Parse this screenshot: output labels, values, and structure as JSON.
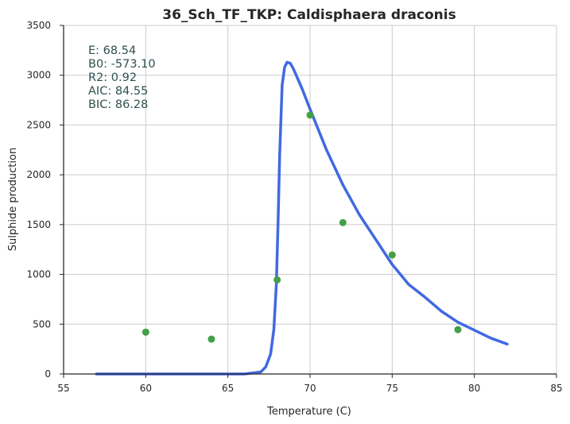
{
  "chart_data": {
    "type": "line",
    "title": "36_Sch_TF_TKP: Caldisphaera draconis",
    "xlabel": "Temperature (C)",
    "ylabel": "Sulphide production",
    "xlim": [
      55,
      85
    ],
    "ylim": [
      0,
      3500
    ],
    "xticks": [
      55,
      60,
      65,
      70,
      75,
      80,
      85
    ],
    "yticks": [
      0,
      500,
      1000,
      1500,
      2000,
      2500,
      3000,
      3500
    ],
    "grid": true,
    "colors": {
      "fit": "#4169e1",
      "points": "#43a047"
    },
    "stats": [
      {
        "label": "E:",
        "value": "68.54"
      },
      {
        "label": "B0:",
        "value": "-573.10"
      },
      {
        "label": "R2:",
        "value": "0.92"
      },
      {
        "label": "AIC:",
        "value": "84.55"
      },
      {
        "label": "BIC:",
        "value": "86.28"
      }
    ],
    "series": [
      {
        "kind": "scatter",
        "x": [
          60,
          64,
          68,
          70,
          72,
          75,
          79
        ],
        "y": [
          420,
          350,
          945,
          2600,
          1520,
          1195,
          445
        ]
      },
      {
        "kind": "line",
        "x": [
          57,
          62,
          66,
          67,
          67.3,
          67.6,
          67.8,
          67.95,
          68.05,
          68.15,
          68.3,
          68.45,
          68.6,
          68.8,
          69,
          69.5,
          70,
          71,
          72,
          73,
          74,
          75,
          76,
          77,
          78,
          79,
          80,
          81,
          82
        ],
        "y": [
          0,
          0,
          0,
          20,
          70,
          200,
          450,
          900,
          1500,
          2200,
          2900,
          3080,
          3130,
          3120,
          3060,
          2870,
          2660,
          2250,
          1900,
          1600,
          1350,
          1100,
          900,
          770,
          630,
          520,
          440,
          360,
          300
        ]
      }
    ]
  }
}
